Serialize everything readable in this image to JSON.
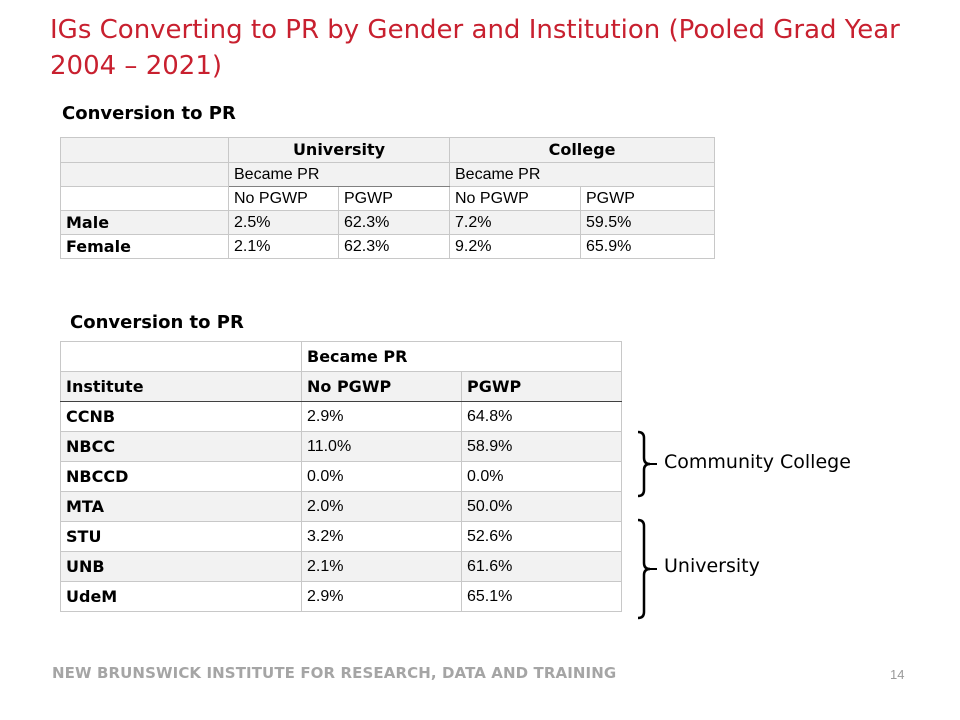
{
  "slide": {
    "title": "IGs Converting to PR by Gender and Institution (Pooled Grad Year 2004 – 2021)",
    "footer": "NEW BRUNSWICK INSTITUTE FOR RESEARCH, DATA AND TRAINING",
    "page_number": "14"
  },
  "gender_table": {
    "heading": "Conversion to PR",
    "university_label": "University",
    "college_label": "College",
    "became_pr": "Became PR",
    "no_pgwp": "No PGWP",
    "pgwp": "PGWP",
    "rows": [
      {
        "label": "Male",
        "uni_no": "2.5%",
        "uni_pgwp": "62.3%",
        "col_no": "7.2%",
        "col_pgwp": "59.5%"
      },
      {
        "label": "Female",
        "uni_no": "2.1%",
        "uni_pgwp": "62.3%",
        "col_no": "9.2%",
        "col_pgwp": "65.9%"
      }
    ]
  },
  "institution_table": {
    "heading": "Conversion to PR",
    "became_pr": "Became PR",
    "col_institute": "Institute",
    "col_no_pgwp": "No PGWP",
    "col_pgwp": "PGWP",
    "rows": [
      {
        "name": "CCNB",
        "no_pgwp": "2.9%",
        "pgwp": "64.8%"
      },
      {
        "name": "NBCC",
        "no_pgwp": "11.0%",
        "pgwp": "58.9%"
      },
      {
        "name": "NBCCD",
        "no_pgwp": "0.0%",
        "pgwp": "0.0%"
      },
      {
        "name": "MTA",
        "no_pgwp": "2.0%",
        "pgwp": "50.0%"
      },
      {
        "name": "STU",
        "no_pgwp": "3.2%",
        "pgwp": "52.6%"
      },
      {
        "name": "UNB",
        "no_pgwp": "2.1%",
        "pgwp": "61.6%"
      },
      {
        "name": "UdeM",
        "no_pgwp": "2.9%",
        "pgwp": "65.1%"
      }
    ]
  },
  "brackets": {
    "community_college": "Community College",
    "university": "University"
  }
}
